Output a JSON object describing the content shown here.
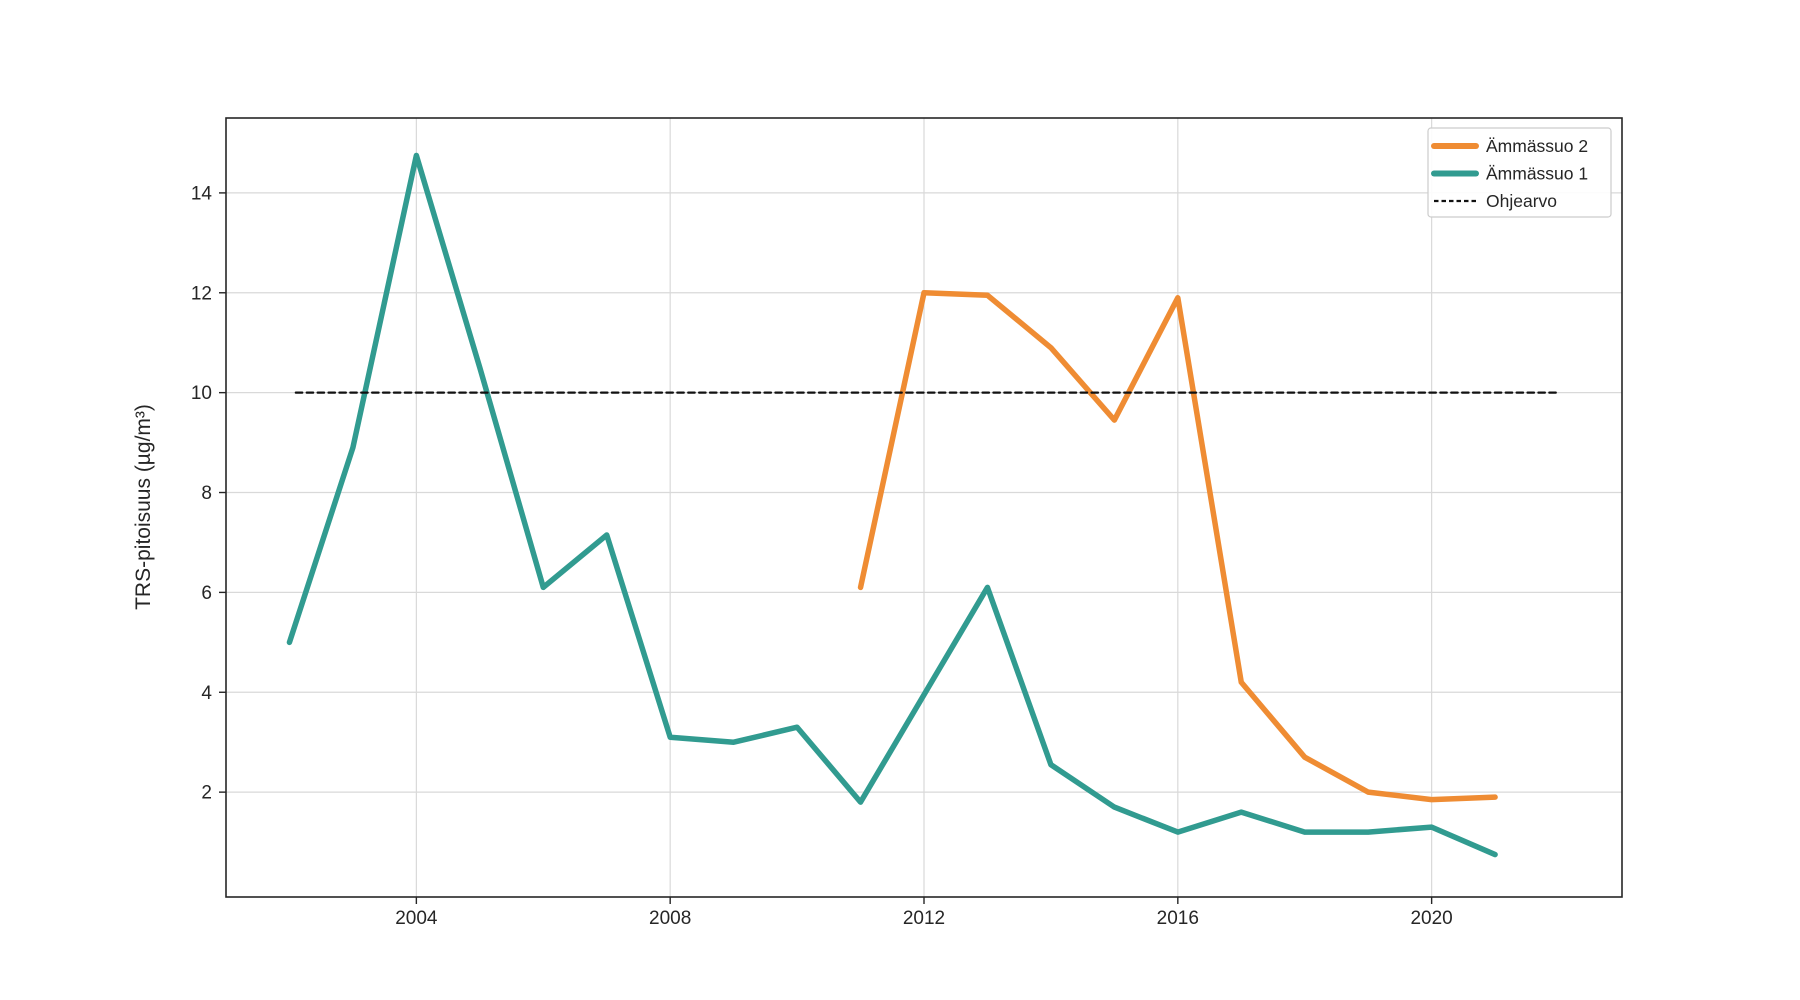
{
  "figure": {
    "background": "#ffffff"
  },
  "chart_data": {
    "type": "line",
    "title": "",
    "xlabel": "",
    "ylabel": "TRS-pitoisuus (µg/m³)",
    "xlim": [
      2001,
      2023
    ],
    "ylim": [
      -0.1,
      15.5
    ],
    "x_ticks": [
      2004,
      2008,
      2012,
      2016,
      2020
    ],
    "y_ticks": [
      2,
      4,
      6,
      8,
      10,
      12,
      14
    ],
    "grid": true,
    "legend_position": "upper right",
    "series": [
      {
        "name": "Ämmässuo 2",
        "color": "#EF8C33",
        "style": "solid",
        "x": [
          2011,
          2012,
          2013,
          2014,
          2015,
          2016,
          2017,
          2018,
          2019,
          2020,
          2021
        ],
        "values": [
          6.1,
          12.0,
          11.95,
          10.9,
          9.45,
          11.9,
          4.2,
          2.7,
          2.0,
          1.85,
          1.9
        ]
      },
      {
        "name": "Ämmässuo 1",
        "color": "#319B90",
        "style": "solid",
        "x": [
          2002,
          2003,
          2004,
          2005,
          2006,
          2007,
          2008,
          2009,
          2010,
          2011,
          2012,
          2013,
          2014,
          2015,
          2016,
          2017,
          2018,
          2019,
          2020,
          2021
        ],
        "values": [
          5.0,
          8.9,
          14.75,
          10.5,
          6.1,
          7.15,
          3.1,
          3.0,
          3.3,
          1.8,
          3.95,
          6.1,
          2.55,
          1.7,
          1.2,
          1.6,
          1.2,
          1.2,
          1.3,
          0.75
        ]
      },
      {
        "name": "Ohjearvo",
        "color": "#111111",
        "style": "dashed",
        "x": [
          2002.1,
          2022
        ],
        "values": [
          10,
          10
        ]
      }
    ],
    "colors": {
      "grid": "#d9d9d9",
      "spine": "#262626",
      "text": "#262626",
      "plot_background": "#ffffff",
      "legend_border": "#cccccc",
      "legend_background": "#ffffff"
    }
  }
}
